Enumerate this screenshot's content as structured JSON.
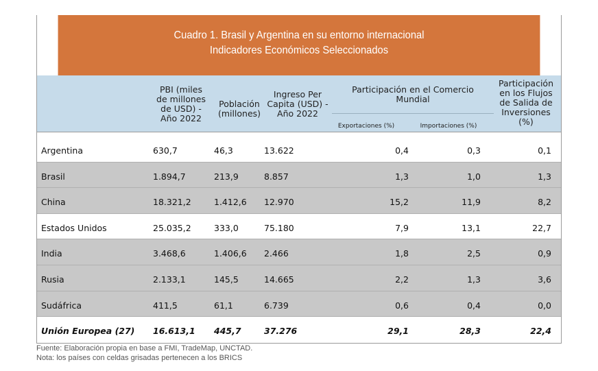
{
  "title": [
    "Cuadro 1. Brasil y Argentina en su entorno internacional",
    "Indicadores Económicos Seleccionados"
  ],
  "headers": {
    "pbi": [
      "PBI (miles",
      "de millones",
      "de USD) -",
      "Año 2022"
    ],
    "poblacion": [
      "Población",
      "(millones)"
    ],
    "ingreso": [
      "Ingreso Per",
      "Capita (USD) -",
      "Año 2022"
    ],
    "comercio": [
      "Participación en el Comercio",
      "Mundial"
    ],
    "export": "Exportaciones (%)",
    "import": "Importaciones (%)",
    "flujos": [
      "Participación",
      "en los Flujos",
      "de Salida de",
      "Inversiones",
      "(%)"
    ]
  },
  "rows": [
    {
      "pais": "Argentina",
      "pbi": "630,7",
      "pob": "46,3",
      "ing": "13.622",
      "exp": "0,4",
      "imp": "0,3",
      "flu": "0,1",
      "brics": false
    },
    {
      "pais": "Brasil",
      "pbi": "1.894,7",
      "pob": "213,9",
      "ing": "8.857",
      "exp": "1,3",
      "imp": "1,0",
      "flu": "1,3",
      "brics": true
    },
    {
      "pais": "China",
      "pbi": "18.321,2",
      "pob": "1.412,6",
      "ing": "12.970",
      "exp": "15,2",
      "imp": "11,9",
      "flu": "8,2",
      "brics": true
    },
    {
      "pais": "Estados Unidos",
      "pbi": "25.035,2",
      "pob": "333,0",
      "ing": "75.180",
      "exp": "7,9",
      "imp": "13,1",
      "flu": "22,7",
      "brics": false
    },
    {
      "pais": "India",
      "pbi": "3.468,6",
      "pob": "1.406,6",
      "ing": "2.466",
      "exp": "1,8",
      "imp": "2,5",
      "flu": "0,9",
      "brics": true
    },
    {
      "pais": "Rusia",
      "pbi": "2.133,1",
      "pob": "145,5",
      "ing": "14.665",
      "exp": "2,2",
      "imp": "1,3",
      "flu": "3,6",
      "brics": true
    },
    {
      "pais": "Sudáfrica",
      "pbi": "411,5",
      "pob": "61,1",
      "ing": "6.739",
      "exp": "0,6",
      "imp": "0,4",
      "flu": "0,0",
      "brics": true
    },
    {
      "pais": "Unión Europea (27)",
      "pbi": "16.613,1",
      "pob": "445,7",
      "ing": "37.276",
      "exp": "29,1",
      "imp": "28,3",
      "flu": "22,4",
      "brics": false
    }
  ],
  "footnotes": [
    "Fuente: Elaboración propia en base a FMI, TradeMap, UNCTAD.",
    "Nota: los países con celdas grisadas pertenecen a los BRICS"
  ]
}
